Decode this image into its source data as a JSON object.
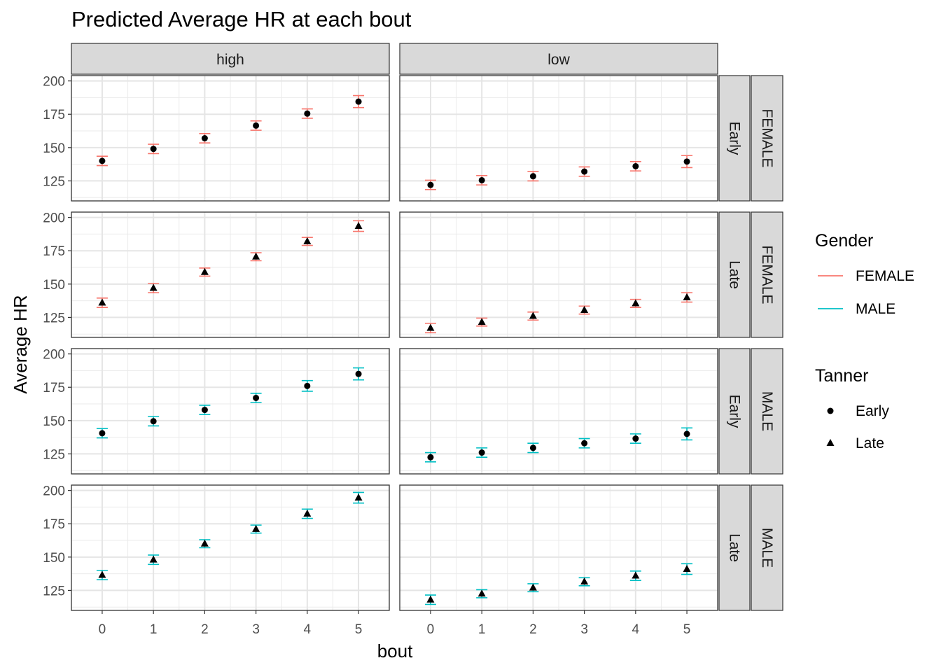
{
  "chart_data": {
    "type": "scatter",
    "title": "Predicted Average HR at each bout",
    "xlabel": "bout",
    "ylabel": "Average HR",
    "x_ticks": [
      0,
      1,
      2,
      3,
      4,
      5
    ],
    "y_ticks": [
      125,
      150,
      175,
      200
    ],
    "ylim": [
      110,
      204
    ],
    "xlim": [
      -0.6,
      5.6
    ],
    "grid": true,
    "facet_columns": [
      "high",
      "low"
    ],
    "facet_rows": [
      {
        "tanner": "Early",
        "gender": "FEMALE"
      },
      {
        "tanner": "Late",
        "gender": "FEMALE"
      },
      {
        "tanner": "Early",
        "gender": "MALE"
      },
      {
        "tanner": "Late",
        "gender": "MALE"
      }
    ],
    "legend": {
      "position": "right",
      "gender_title": "Gender",
      "gender_entries": [
        {
          "label": "FEMALE",
          "color": "#F8766D"
        },
        {
          "label": "MALE",
          "color": "#00BFC4"
        }
      ],
      "tanner_title": "Tanner",
      "tanner_entries": [
        {
          "label": "Early",
          "shape": "circle"
        },
        {
          "label": "Late",
          "shape": "triangle"
        }
      ]
    },
    "panels": [
      {
        "column": "high",
        "tanner": "Early",
        "gender": "FEMALE",
        "x": [
          0,
          1,
          2,
          3,
          4,
          5
        ],
        "values": [
          140,
          149,
          157,
          166.5,
          175.5,
          184.5
        ],
        "error": [
          3.5,
          3.5,
          3.5,
          3.5,
          3.5,
          4.5
        ]
      },
      {
        "column": "low",
        "tanner": "Early",
        "gender": "FEMALE",
        "x": [
          0,
          1,
          2,
          3,
          4,
          5
        ],
        "values": [
          122,
          125.5,
          128.5,
          132,
          136,
          139.5
        ],
        "error": [
          3.5,
          3.5,
          3.5,
          3.5,
          3.5,
          4.5
        ]
      },
      {
        "column": "high",
        "tanner": "Late",
        "gender": "FEMALE",
        "x": [
          0,
          1,
          2,
          3,
          4,
          5
        ],
        "values": [
          136,
          147,
          159,
          170.5,
          182,
          193.5
        ],
        "error": [
          3.5,
          3.5,
          3,
          3,
          3,
          4
        ]
      },
      {
        "column": "low",
        "tanner": "Late",
        "gender": "FEMALE",
        "x": [
          0,
          1,
          2,
          3,
          4,
          5
        ],
        "values": [
          117,
          121.5,
          126,
          130.5,
          135.5,
          140
        ],
        "error": [
          3.5,
          3,
          3,
          3,
          3,
          3.5
        ]
      },
      {
        "column": "high",
        "tanner": "Early",
        "gender": "MALE",
        "x": [
          0,
          1,
          2,
          3,
          4,
          5
        ],
        "values": [
          140.5,
          149.5,
          158,
          167,
          176,
          185
        ],
        "error": [
          3.5,
          3.5,
          3.5,
          3.5,
          4,
          4.5
        ]
      },
      {
        "column": "low",
        "tanner": "Early",
        "gender": "MALE",
        "x": [
          0,
          1,
          2,
          3,
          4,
          5
        ],
        "values": [
          122.5,
          126,
          129.5,
          133,
          136.5,
          140
        ],
        "error": [
          3.5,
          3.5,
          3.5,
          3.5,
          3.5,
          4.5
        ]
      },
      {
        "column": "high",
        "tanner": "Late",
        "gender": "MALE",
        "x": [
          0,
          1,
          2,
          3,
          4,
          5
        ],
        "values": [
          136.5,
          148,
          160,
          171,
          182.5,
          194.5
        ],
        "error": [
          3.5,
          3.5,
          3,
          3,
          3.5,
          4
        ]
      },
      {
        "column": "low",
        "tanner": "Late",
        "gender": "MALE",
        "x": [
          0,
          1,
          2,
          3,
          4,
          5
        ],
        "values": [
          118,
          122.5,
          127,
          131.5,
          136,
          141
        ],
        "error": [
          3.5,
          3,
          3,
          3,
          3.5,
          4
        ]
      }
    ]
  }
}
